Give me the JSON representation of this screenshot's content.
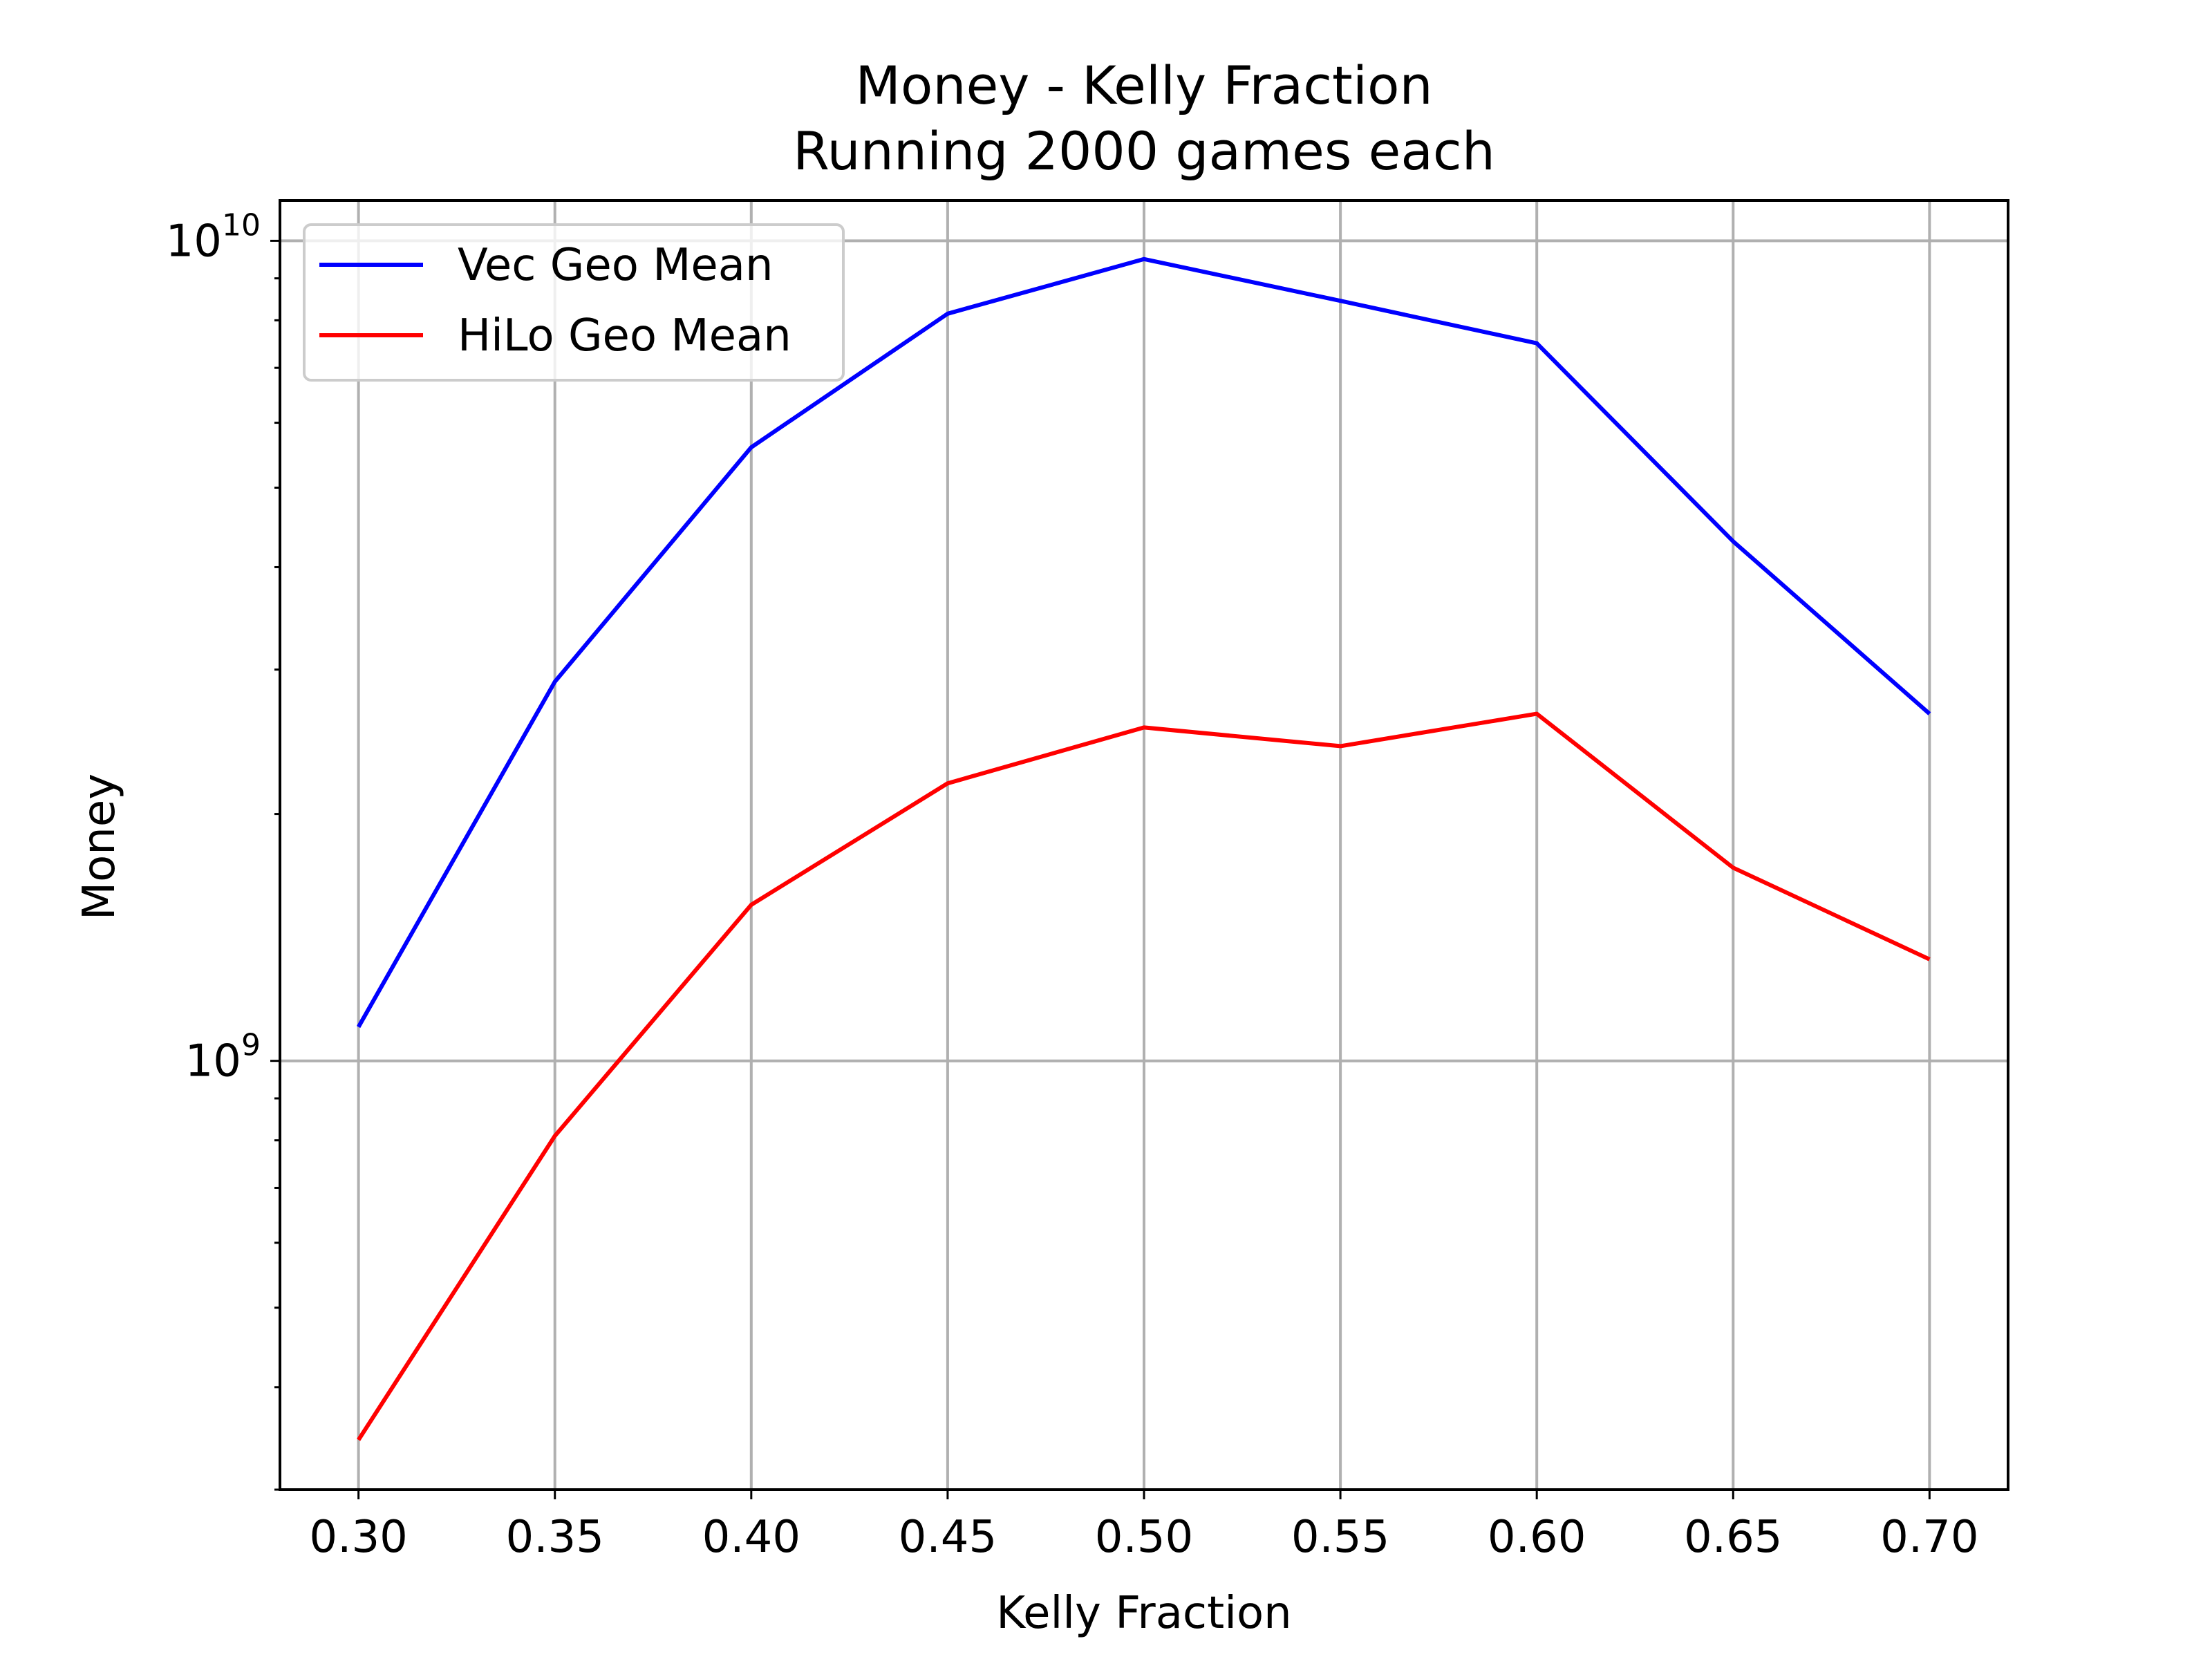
{
  "chart_data": {
    "type": "line",
    "title": [
      "Money - Kelly Fraction",
      "Running 2000 games each"
    ],
    "xlabel": "Kelly Fraction",
    "ylabel": "Money",
    "x": [
      0.3,
      0.35,
      0.4,
      0.45,
      0.5,
      0.55,
      0.6,
      0.65,
      0.7
    ],
    "x_tick_labels": [
      "0.30",
      "0.35",
      "0.40",
      "0.45",
      "0.50",
      "0.55",
      "0.60",
      "0.65",
      "0.70"
    ],
    "xlim": [
      0.28,
      0.72
    ],
    "y_scale": "log",
    "ylim": [
      300000000.0,
      11200000000.0
    ],
    "y_major_ticks": [
      {
        "value": 1000000000.0,
        "base": "10",
        "exp": "9"
      },
      {
        "value": 10000000000.0,
        "base": "10",
        "exp": "10"
      }
    ],
    "y_minor_ticks": [
      300000000.0,
      400000000.0,
      500000000.0,
      600000000.0,
      700000000.0,
      800000000.0,
      900000000.0,
      2000000000.0,
      3000000000.0,
      4000000000.0,
      5000000000.0,
      6000000000.0,
      7000000000.0,
      8000000000.0,
      9000000000.0
    ],
    "grid": true,
    "legend_position": "upper-left",
    "series": [
      {
        "name": "Vec Geo Mean",
        "color": "#0000ff",
        "values": [
          1100000000.0,
          2900000000.0,
          5600000000.0,
          8150000000.0,
          9500000000.0,
          8450000000.0,
          7500000000.0,
          4300000000.0,
          2650000000.0
        ]
      },
      {
        "name": "HiLo Geo Mean",
        "color": "#ff0000",
        "values": [
          345000000.0,
          810000000.0,
          1550000000.0,
          2180000000.0,
          2550000000.0,
          2420000000.0,
          2650000000.0,
          1720000000.0,
          1330000000.0
        ]
      }
    ]
  }
}
